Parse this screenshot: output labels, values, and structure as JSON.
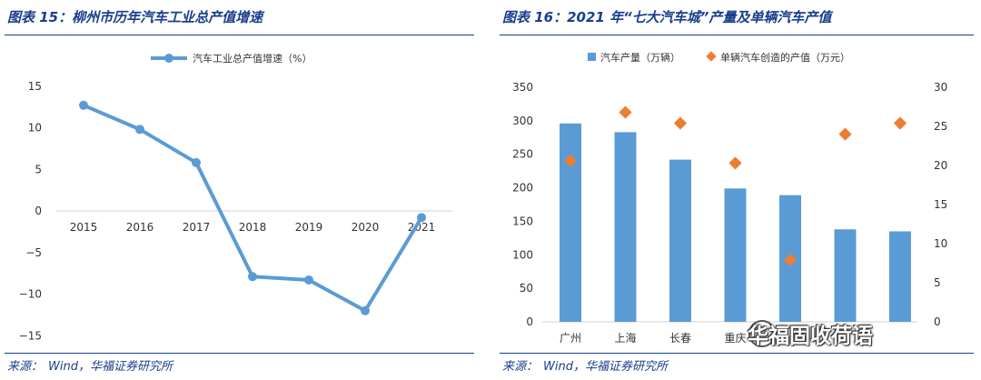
{
  "left": {
    "title": "图表 15：柳州市历年汽车工业总产值增速",
    "source": {
      "label": "来源：",
      "text": "Wind，华福证券研究所"
    },
    "chart_data": {
      "type": "line",
      "series": [
        {
          "name": "汽车工业总产值增速（%）",
          "x": [
            "2015",
            "2016",
            "2017",
            "2018",
            "2019",
            "2020",
            "2021"
          ],
          "values": [
            12.7,
            9.8,
            5.8,
            -7.9,
            -8.3,
            -12.0,
            -0.8
          ]
        }
      ],
      "ylim": [
        -15,
        15
      ],
      "yticks": [
        "15",
        "10",
        "5",
        "0",
        "−5",
        "−10",
        "−15"
      ],
      "grid": false,
      "legend": "top",
      "color": "#5b9bd5"
    }
  },
  "right": {
    "title": "图表 16：2021 年“七大汽车城”产量及单辆汽车产值",
    "source": {
      "label": "来源：",
      "text": "Wind，华福证券研究所"
    },
    "chart_data": {
      "type": "bar",
      "categories": [
        "广州",
        "上海",
        "长春",
        "重庆",
        "",
        "",
        ""
      ],
      "series": [
        {
          "name": "汽车产量（万辆）",
          "type": "bar",
          "axis": "left",
          "values": [
            296,
            283,
            242,
            199,
            189,
            138,
            135
          ],
          "color": "#5b9bd5"
        },
        {
          "name": "单辆汽车创造的产值（万元）",
          "type": "scatter",
          "axis": "right",
          "values": [
            20.6,
            26.8,
            25.4,
            20.3,
            7.9,
            24.0,
            25.4
          ],
          "color": "#ed7d31"
        }
      ],
      "ylim": [
        0,
        350
      ],
      "y2lim": [
        0,
        30
      ],
      "yticks": [
        "350",
        "300",
        "250",
        "200",
        "150",
        "100",
        "50",
        "0"
      ],
      "y2ticks": [
        "30",
        "25",
        "20",
        "15",
        "10",
        "5",
        "0"
      ],
      "grid": false,
      "legend": "top"
    },
    "watermark": "华福固收荷语"
  }
}
